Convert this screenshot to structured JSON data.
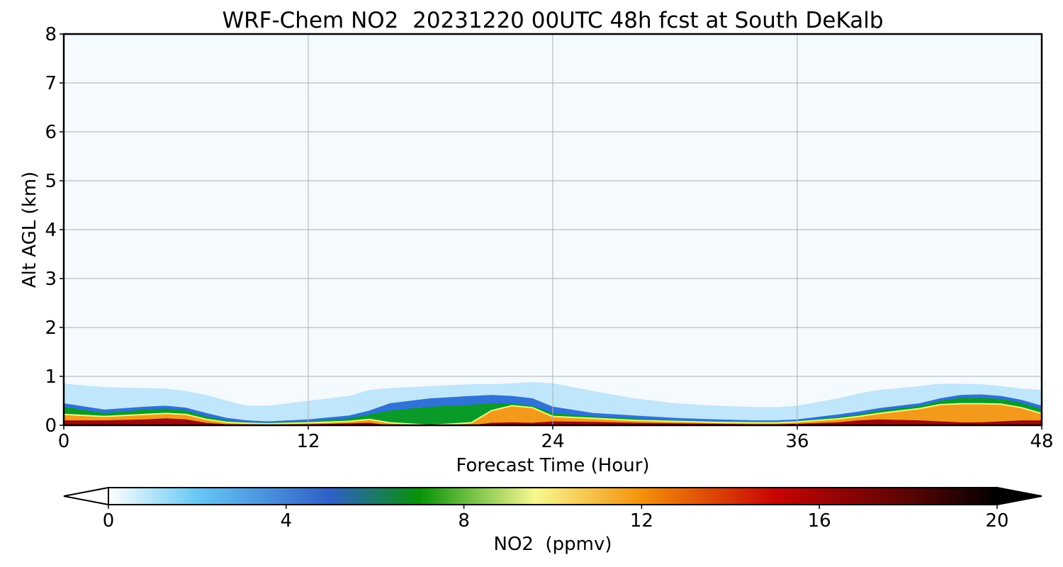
{
  "chart_data": {
    "type": "heatmap",
    "title": "WRF-Chem NO2  20231220 00UTC 48h fcst at South DeKalb",
    "xlabel": "Forecast Time (Hour)",
    "ylabel": "Alt AGL (km)",
    "xlim": [
      0,
      48
    ],
    "ylim": [
      0,
      8
    ],
    "x_ticks": [
      0,
      12,
      24,
      36,
      48
    ],
    "y_ticks": [
      0,
      1,
      2,
      3,
      4,
      5,
      6,
      7,
      8
    ],
    "grid": true,
    "colorbar": {
      "label": "NO2  (ppmv)",
      "min": 0,
      "max": 20,
      "ticks": [
        0,
        4,
        8,
        12,
        16,
        20
      ],
      "extend": "both",
      "stops": [
        {
          "value": 0,
          "color": "#ffffff"
        },
        {
          "value": 2,
          "color": "#66c8f5"
        },
        {
          "value": 5,
          "color": "#2f5fc8"
        },
        {
          "value": 7,
          "color": "#079207"
        },
        {
          "value": 9.6,
          "color": "#f8f990"
        },
        {
          "value": 12,
          "color": "#f5900a"
        },
        {
          "value": 15,
          "color": "#c80404"
        },
        {
          "value": 18,
          "color": "#5a0404"
        },
        {
          "value": 20,
          "color": "#000000"
        }
      ]
    },
    "background_color": "#f5fafe",
    "profile": {
      "x": [
        0,
        2,
        4,
        5,
        6,
        7,
        8,
        9,
        10,
        12,
        14,
        15,
        16,
        18,
        20,
        21,
        22,
        23,
        24,
        26,
        28,
        30,
        32,
        34,
        35,
        36,
        38,
        39,
        40,
        42,
        43,
        44,
        45,
        46,
        47,
        48
      ],
      "blue_top_km": [
        0.85,
        0.78,
        0.76,
        0.75,
        0.7,
        0.62,
        0.5,
        0.4,
        0.4,
        0.5,
        0.6,
        0.72,
        0.76,
        0.8,
        0.84,
        0.84,
        0.86,
        0.88,
        0.86,
        0.7,
        0.55,
        0.45,
        0.4,
        0.37,
        0.37,
        0.4,
        0.55,
        0.65,
        0.72,
        0.8,
        0.85,
        0.85,
        0.84,
        0.8,
        0.75,
        0.72
      ],
      "blue_dark_top_km": [
        0.45,
        0.32,
        0.38,
        0.4,
        0.36,
        0.25,
        0.15,
        0.1,
        0.08,
        0.12,
        0.2,
        0.3,
        0.45,
        0.55,
        0.6,
        0.62,
        0.6,
        0.55,
        0.38,
        0.25,
        0.2,
        0.15,
        0.12,
        0.1,
        0.1,
        0.12,
        0.22,
        0.28,
        0.35,
        0.45,
        0.55,
        0.62,
        0.63,
        0.6,
        0.52,
        0.4
      ],
      "green_top_km": [
        0.38,
        0.25,
        0.32,
        0.34,
        0.3,
        0.18,
        0.1,
        0.06,
        0.05,
        0.08,
        0.14,
        0.22,
        0.3,
        0.38,
        0.42,
        0.45,
        0.45,
        0.4,
        0.25,
        0.18,
        0.14,
        0.1,
        0.08,
        0.07,
        0.07,
        0.09,
        0.17,
        0.22,
        0.3,
        0.4,
        0.5,
        0.56,
        0.56,
        0.54,
        0.46,
        0.33
      ],
      "warm_top_km": [
        0.22,
        0.18,
        0.22,
        0.24,
        0.22,
        0.12,
        0.06,
        0.04,
        0.03,
        0.05,
        0.08,
        0.12,
        0.05,
        0.0,
        0.05,
        0.3,
        0.4,
        0.36,
        0.18,
        0.14,
        0.1,
        0.08,
        0.06,
        0.05,
        0.05,
        0.07,
        0.13,
        0.18,
        0.24,
        0.34,
        0.42,
        0.44,
        0.44,
        0.43,
        0.36,
        0.24
      ],
      "dark_top_km": [
        0.1,
        0.1,
        0.12,
        0.14,
        0.12,
        0.05,
        0.02,
        0.01,
        0.01,
        0.02,
        0.04,
        0.05,
        0.0,
        0.0,
        0.0,
        0.05,
        0.06,
        0.05,
        0.08,
        0.07,
        0.05,
        0.04,
        0.03,
        0.02,
        0.02,
        0.03,
        0.06,
        0.1,
        0.12,
        0.1,
        0.08,
        0.06,
        0.06,
        0.08,
        0.1,
        0.1
      ]
    }
  }
}
